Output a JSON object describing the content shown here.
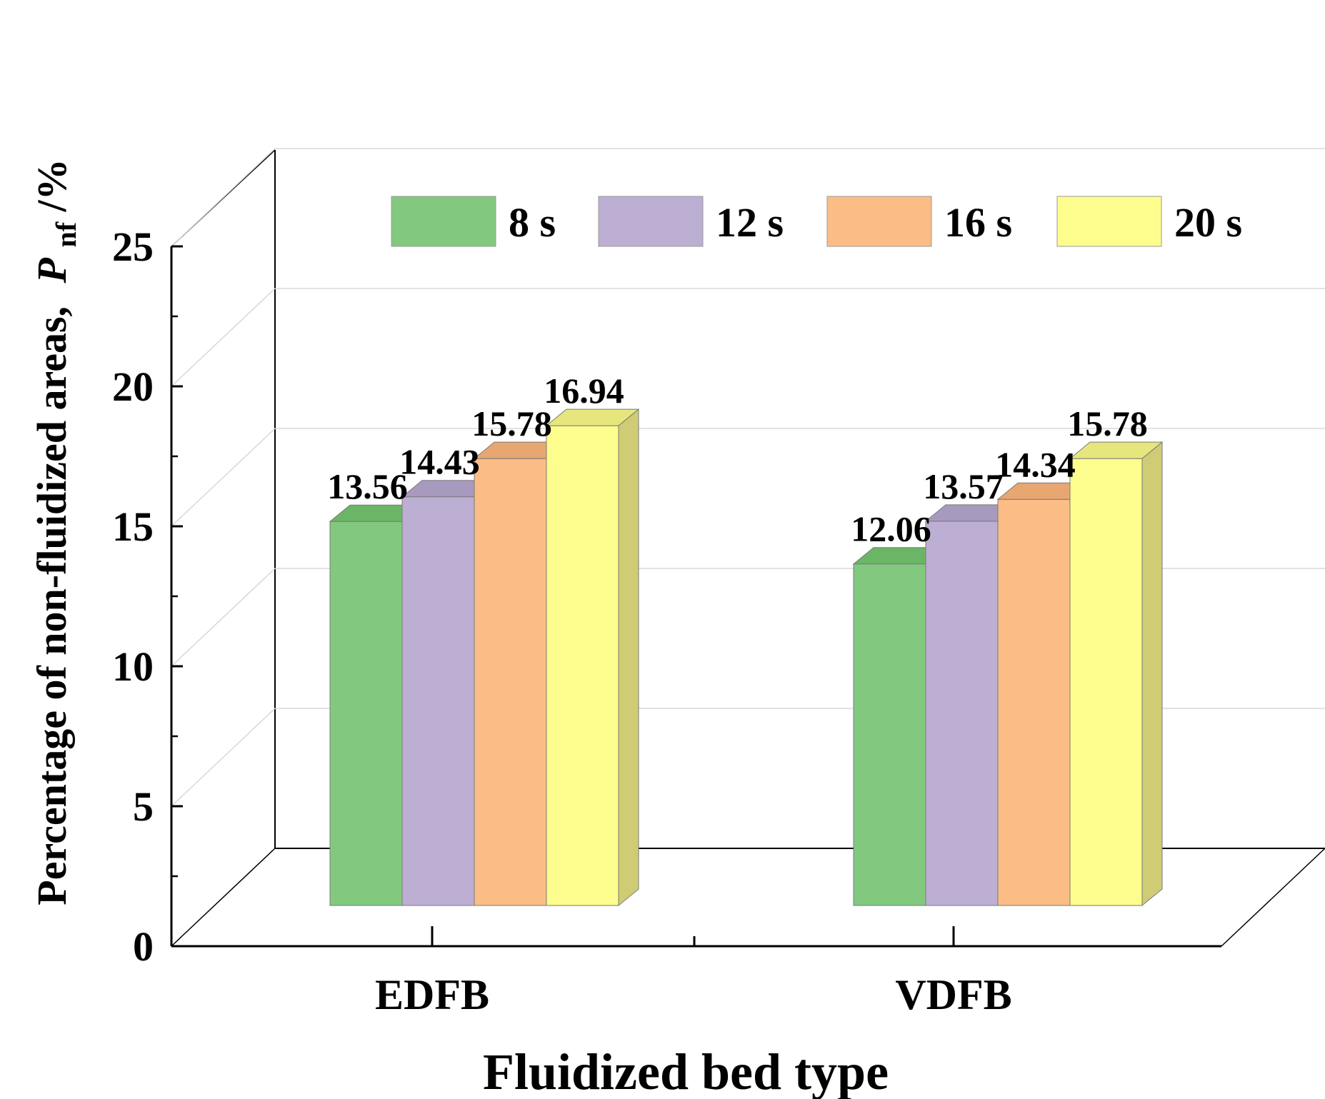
{
  "chart_data": {
    "type": "bar",
    "style": "3d-clustered",
    "title": "",
    "xlabel": "Fluidized bed type",
    "ylabel": "Percentage of non-fluidized areas,",
    "ylabel_symbol": "P",
    "ylabel_subscript": "nf",
    "ylabel_unit": "/%",
    "categories": [
      "EDFB",
      "VDFB"
    ],
    "ylim": [
      0,
      25
    ],
    "yticks": [
      "0",
      "5",
      "10",
      "15",
      "20",
      "25"
    ],
    "grid": true,
    "legend_position": "top",
    "series": [
      {
        "name": "8 s",
        "values": [
          13.56,
          12.06
        ],
        "labels": [
          "13.56",
          "12.06"
        ],
        "color": "#82c97f",
        "top_color": "#6bb566",
        "side_color": "#5ea35a"
      },
      {
        "name": "12 s",
        "values": [
          14.43,
          13.57
        ],
        "labels": [
          "14.43",
          "13.57"
        ],
        "color": "#bdaed3",
        "top_color": "#a899bf",
        "side_color": "#9a8cb0"
      },
      {
        "name": "16 s",
        "values": [
          15.78,
          14.34
        ],
        "labels": [
          "15.78",
          "14.34"
        ],
        "color": "#fbbd85",
        "top_color": "#e8a670",
        "side_color": "#d99a66"
      },
      {
        "name": "20 s",
        "values": [
          16.94,
          15.78
        ],
        "labels": [
          "16.94",
          "15.78"
        ],
        "color": "#fdfd8e",
        "top_color": "#e6e67d",
        "side_color": "#cfcc75"
      }
    ]
  }
}
